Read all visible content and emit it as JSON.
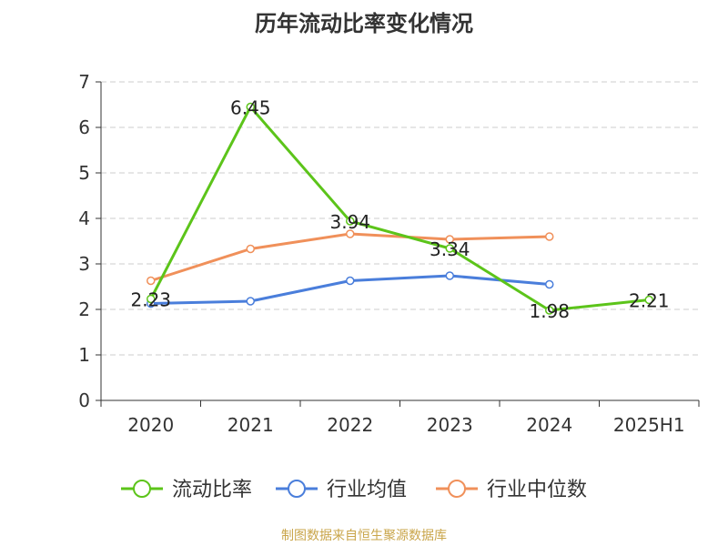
{
  "chart_data": {
    "type": "line",
    "title": "历年流动比率变化情况",
    "categories": [
      "2020",
      "2021",
      "2022",
      "2023",
      "2024",
      "2025H1"
    ],
    "ylim": [
      0,
      7
    ],
    "yticks": [
      "0",
      "1",
      "2",
      "3",
      "4",
      "5",
      "6",
      "7"
    ],
    "grid": true,
    "legend_position": "bottom",
    "series": [
      {
        "name": "流动比率",
        "color": "#5cc41a",
        "values": [
          2.23,
          6.45,
          3.94,
          3.34,
          1.98,
          2.21
        ],
        "labels": [
          "2.23",
          "6.45",
          "3.94",
          "3.34",
          "1.98",
          "2.21"
        ]
      },
      {
        "name": "行业均值",
        "color": "#4a7edb",
        "values": [
          2.13,
          2.18,
          2.63,
          2.74,
          2.55,
          null
        ]
      },
      {
        "name": "行业中位数",
        "color": "#f0905a",
        "values": [
          2.63,
          3.33,
          3.66,
          3.54,
          3.6,
          null
        ]
      }
    ]
  },
  "source": "制图数据来自恒生聚源数据库"
}
